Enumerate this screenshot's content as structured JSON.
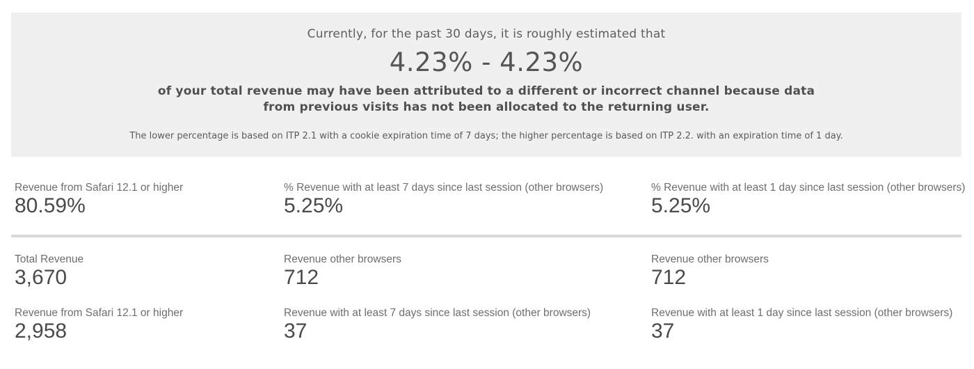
{
  "banner": {
    "intro": "Currently, for the past 30 days, it is roughly estimated that",
    "range": "4.23% - 4.23%",
    "statement": "of your total revenue may have been attributed to a different or incorrect channel because data from previous visits has not been allocated to the returning user.",
    "footnote": "The lower percentage is based on ITP 2.1 with a cookie expiration time of 7 days; the higher percentage is based on ITP 2.2. with an expiration time of 1 day."
  },
  "percent_metrics": [
    {
      "label": "Revenue from Safari 12.1 or higher",
      "value": "80.59%"
    },
    {
      "label": "% Revenue with at least 7 days since last session (other browsers)",
      "value": "5.25%"
    },
    {
      "label": "% Revenue with at least 1 day since last session (other browsers)",
      "value": "5.25%"
    }
  ],
  "totals_row": [
    {
      "label": "Total Revenue",
      "value": "3,670"
    },
    {
      "label": "Revenue other browsers",
      "value": "712"
    },
    {
      "label": "Revenue other browsers",
      "value": "712"
    }
  ],
  "detail_row": [
    {
      "label": "Revenue from Safari 12.1 or higher",
      "value": "2,958"
    },
    {
      "label": "Revenue with at least 7 days since last session (other browsers)",
      "value": "37"
    },
    {
      "label": "Revenue with at least 1 day since last session (other browsers)",
      "value": "37"
    }
  ]
}
